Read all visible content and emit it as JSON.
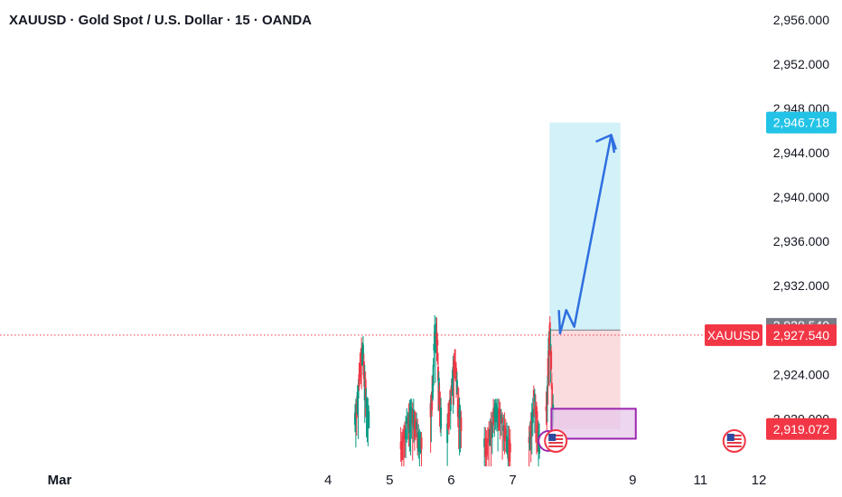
{
  "chart_data": {
    "type": "candlestick",
    "title": "XAUUSD · Gold Spot / U.S. Dollar · 15 · OANDA",
    "symbol": "XAUUSD",
    "y_ticks": [
      "2,956.000",
      "2,952.000",
      "2,948.000",
      "2,944.000",
      "2,940.000",
      "2,936.000",
      "2,932.000",
      "2,928.000",
      "2,924.000",
      "2,920.000"
    ],
    "y_tick_values": [
      2956,
      2952,
      2948,
      2944,
      2940,
      2936,
      2932,
      2928,
      2924,
      2920
    ],
    "ylim": [
      2916.2,
      2956.8
    ],
    "x_ticks": [
      "Mar",
      "4",
      "5",
      "6",
      "7",
      "9",
      "11",
      "12"
    ],
    "x_tick_positions": [
      0,
      4,
      5,
      6,
      7,
      8.95,
      10.05,
      11.0
    ],
    "xlim": [
      -0.45,
      11.0
    ],
    "current_price": {
      "label": "XAUUSD",
      "value": "2,927.540",
      "price": 2927.54,
      "color": "#f23645"
    },
    "target_price": {
      "value": "2,946.718",
      "price": 2946.718,
      "color": "#22c3e6"
    },
    "stop_price": {
      "value": "2,919.072",
      "price": 2919.072,
      "color": "#f23645"
    },
    "hidden_price_partial": "2,928.540",
    "position": {
      "type": "long",
      "x_start": 7.6,
      "x_end": 8.75,
      "entry": 2928.0,
      "target": 2946.718,
      "stop": 2919.072,
      "profit_color": "#d3f1f8",
      "loss_color": "#fadcdf"
    },
    "demand_zone": {
      "x_start": 7.63,
      "x_end": 9.0,
      "top": 2920.9,
      "bottom": 2918.2,
      "border_color": "#9c27b0",
      "fill_color": "#e7c8ea"
    },
    "forecast_path": [
      {
        "x": 7.75,
        "y": 2929.8
      },
      {
        "x": 7.77,
        "y": 2927.7
      },
      {
        "x": 7.87,
        "y": 2929.8
      },
      {
        "x": 8.0,
        "y": 2928.3
      },
      {
        "x": 8.6,
        "y": 2945.6
      },
      {
        "x": 8.65,
        "y": 2944.0
      }
    ],
    "forecast_color": "#2f6fe0",
    "event_markers": [
      {
        "x": 7.7,
        "country": "US"
      },
      {
        "x": 10.6,
        "country": "US"
      }
    ],
    "candle_clusters": [
      {
        "center": 4.55,
        "spread": 0.08,
        "peak": 2927.6,
        "count": 18
      },
      {
        "center": 5.35,
        "spread": 0.12,
        "peak": 2921.8,
        "count": 22
      },
      {
        "center": 5.75,
        "spread": 0.06,
        "peak": 2929.6,
        "count": 16
      },
      {
        "center": 6.05,
        "spread": 0.08,
        "peak": 2926.4,
        "count": 18
      },
      {
        "center": 6.75,
        "spread": 0.15,
        "peak": 2921.8,
        "count": 24
      },
      {
        "center": 7.35,
        "spread": 0.06,
        "peak": 2923.0,
        "count": 12
      },
      {
        "center": 7.6,
        "spread": 0.04,
        "peak": 2929.8,
        "count": 12
      }
    ],
    "bull_color": "#089981",
    "bear_color": "#f23645",
    "grid": false,
    "legend": "none"
  }
}
